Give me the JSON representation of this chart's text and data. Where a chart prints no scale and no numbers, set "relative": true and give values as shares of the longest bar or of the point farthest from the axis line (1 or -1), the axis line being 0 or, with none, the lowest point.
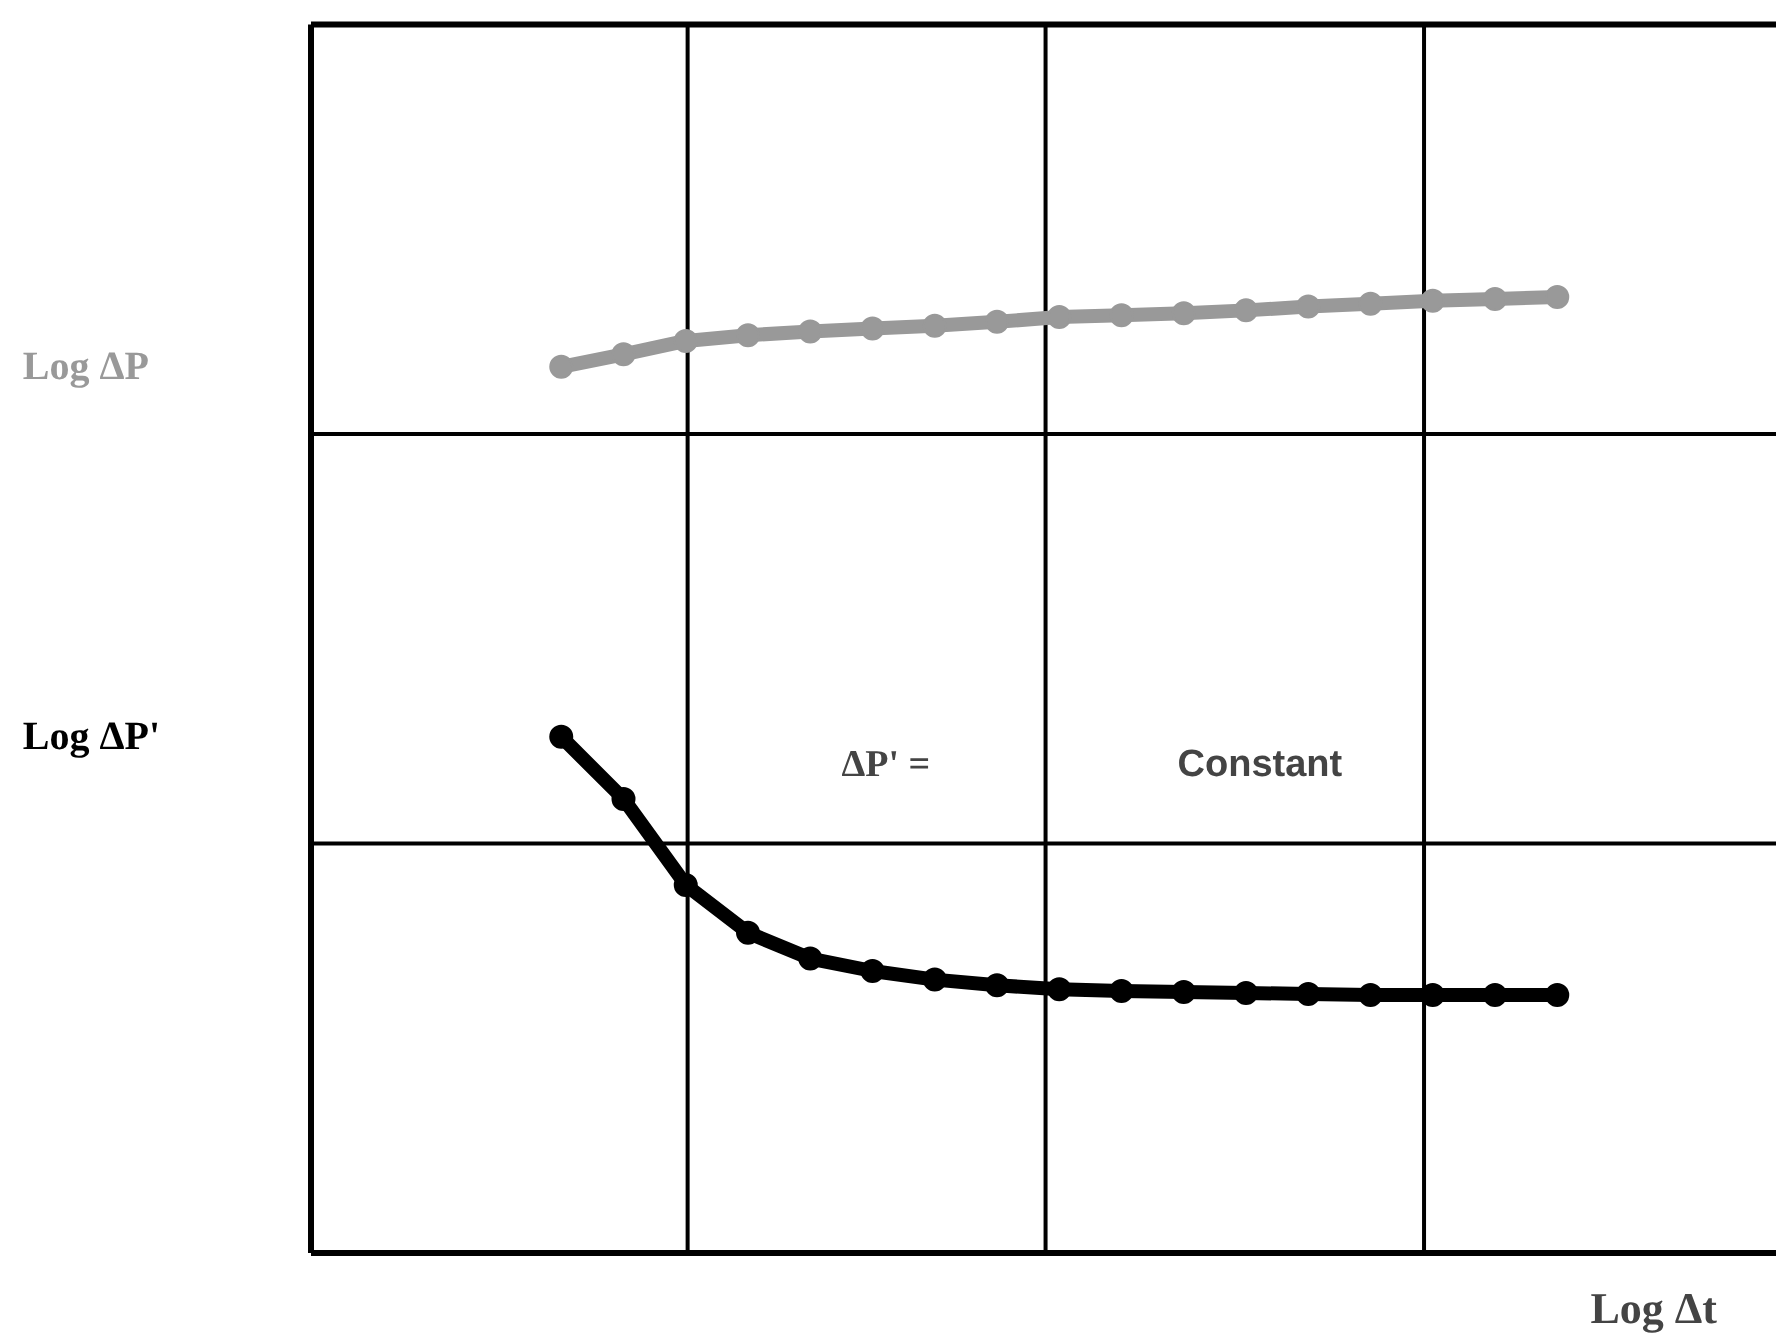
{
  "chart_data": {
    "type": "line",
    "relative": true,
    "xlabel": "Log Δt",
    "categories": [
      null,
      null,
      null,
      null,
      null,
      null,
      null,
      null,
      null,
      null,
      null,
      null,
      null,
      null,
      null,
      null,
      null
    ],
    "series": [
      {
        "name": "Log ΔP",
        "color": "#999999",
        "values": [
          0.927,
          0.94,
          0.954,
          0.96,
          0.964,
          0.967,
          0.97,
          0.974,
          0.979,
          0.981,
          0.983,
          0.986,
          0.99,
          0.993,
          0.996,
          0.998,
          1.0
        ]
      },
      {
        "name": "Log ΔP'",
        "color": "#000000",
        "values": [
          0.54,
          0.475,
          0.385,
          0.335,
          0.308,
          0.295,
          0.286,
          0.28,
          0.276,
          0.274,
          0.273,
          0.272,
          0.271,
          0.27,
          0.27,
          0.27,
          0.27
        ]
      }
    ],
    "annotations": [
      "ΔP' =",
      "Constant"
    ],
    "marker": "circle",
    "grid": true,
    "legend": false
  }
}
